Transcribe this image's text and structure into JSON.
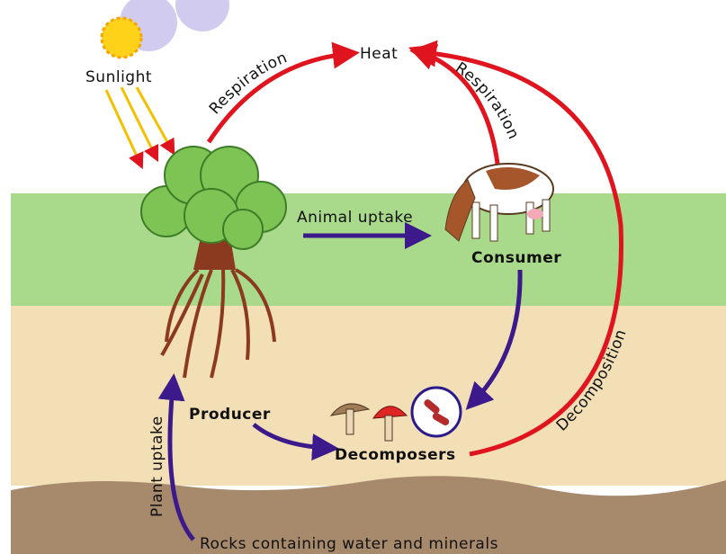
{
  "nodes": {
    "heat": "Heat",
    "sunlight": "Sunlight",
    "producer": "Producer",
    "consumer": "Consumer",
    "decomposers": "Decomposers",
    "rocks": "Rocks containing water and minerals"
  },
  "edges": {
    "plant_respiration": "Respiration",
    "consumer_respiration": "Respiration",
    "animal_uptake": "Animal uptake",
    "decomposition": "Decomposition",
    "plant_uptake": "Plant uptake"
  }
}
